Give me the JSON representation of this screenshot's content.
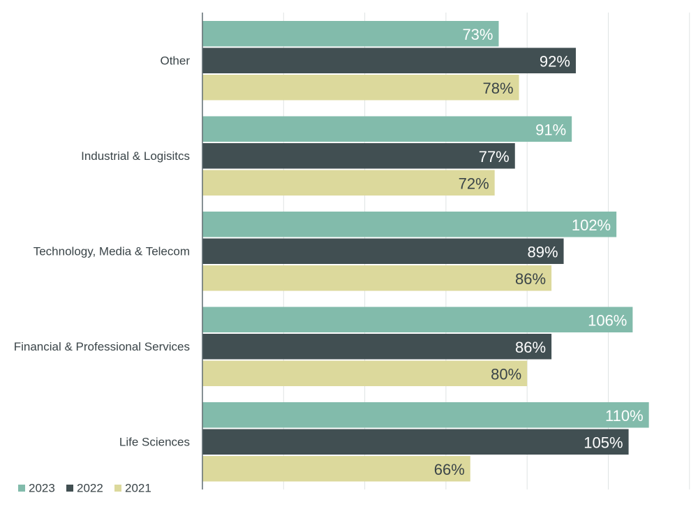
{
  "chart_data": {
    "type": "bar",
    "orientation": "horizontal",
    "categories": [
      "Other",
      "Industrial & Logisitcs",
      "Technology, Media & Telecom",
      "Financial & Professional Services",
      "Life Sciences"
    ],
    "series": [
      {
        "name": "2023",
        "color": "#82bbab",
        "label_color": "#ffffff",
        "values": [
          73,
          91,
          102,
          106,
          110
        ]
      },
      {
        "name": "2022",
        "color": "#414f52",
        "label_color": "#ffffff",
        "values": [
          92,
          77,
          89,
          86,
          105
        ]
      },
      {
        "name": "2021",
        "color": "#dcd99c",
        "label_color": "#3a4448",
        "values": [
          78,
          72,
          86,
          80,
          66
        ]
      }
    ],
    "value_suffix": "%",
    "xlim": [
      0,
      120
    ],
    "grid": true,
    "legend_position": "bottom-left",
    "title": "",
    "xlabel": "",
    "ylabel": ""
  }
}
